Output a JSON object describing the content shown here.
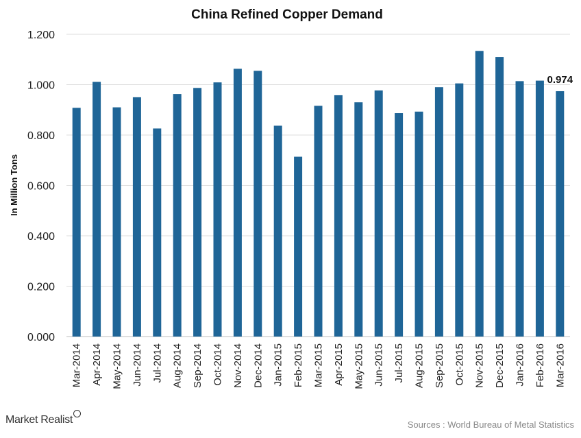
{
  "chart_data": {
    "type": "bar",
    "title": "China Refined Copper Demand",
    "ylabel": "In Million Tons",
    "xlabel": "",
    "ylim": [
      0,
      1.2
    ],
    "yticks": [
      "0.000",
      "0.200",
      "0.400",
      "0.600",
      "0.800",
      "1.000",
      "1.200"
    ],
    "grid": true,
    "bar_color": "#1f6597",
    "categories": [
      "Mar-2014",
      "Apr-2014",
      "May-2014",
      "Jun-2014",
      "Jul-2014",
      "Aug-2014",
      "Sep-2014",
      "Oct-2014",
      "Nov-2014",
      "Dec-2014",
      "Jan-2015",
      "Feb-2015",
      "Mar-2015",
      "Apr-2015",
      "May-2015",
      "Jun-2015",
      "Jul-2015",
      "Aug-2015",
      "Sep-2015",
      "Oct-2015",
      "Nov-2015",
      "Dec-2015",
      "Jan-2016",
      "Feb-2016",
      "Mar-2016"
    ],
    "values": [
      0.908,
      1.011,
      0.91,
      0.95,
      0.826,
      0.963,
      0.987,
      1.009,
      1.063,
      1.055,
      0.837,
      0.714,
      0.916,
      0.958,
      0.93,
      0.977,
      0.887,
      0.893,
      0.99,
      1.005,
      1.134,
      1.11,
      1.014,
      1.016,
      0.974
    ],
    "annotations": [
      {
        "category": "Mar-2016",
        "label": "0.974"
      }
    ]
  },
  "footer": {
    "brand": "Market Realist",
    "brand_icon": "magnifier-icon",
    "source": "Sources : World Bureau of Metal Statistics"
  }
}
